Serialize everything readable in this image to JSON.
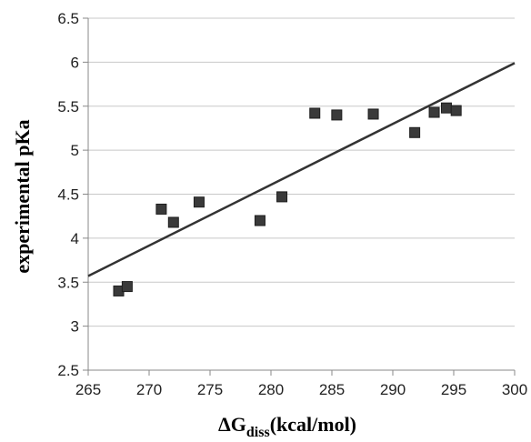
{
  "chart_data": {
    "type": "scatter",
    "xlabel_main": "ΔG",
    "xlabel_sub": "diss",
    "xlabel_unit": "(kcal/mol)",
    "ylabel": "experimental pKa",
    "xlim": [
      265,
      300
    ],
    "ylim": [
      2.5,
      6.5
    ],
    "x_ticks": [
      "265",
      "270",
      "275",
      "280",
      "285",
      "290",
      "295",
      "300"
    ],
    "y_ticks": [
      "2.5",
      "3",
      "3.5",
      "4",
      "4.5",
      "5",
      "5.5",
      "6",
      "6.5"
    ],
    "grid": "horizontal",
    "points": [
      {
        "x": 267.5,
        "y": 3.4
      },
      {
        "x": 268.2,
        "y": 3.45
      },
      {
        "x": 271.0,
        "y": 4.33
      },
      {
        "x": 272.0,
        "y": 4.18
      },
      {
        "x": 274.1,
        "y": 4.41
      },
      {
        "x": 279.1,
        "y": 4.2
      },
      {
        "x": 280.9,
        "y": 4.47
      },
      {
        "x": 283.6,
        "y": 5.42
      },
      {
        "x": 285.4,
        "y": 5.4
      },
      {
        "x": 288.4,
        "y": 5.41
      },
      {
        "x": 291.8,
        "y": 5.2
      },
      {
        "x": 293.4,
        "y": 5.43
      },
      {
        "x": 294.4,
        "y": 5.48
      },
      {
        "x": 295.2,
        "y": 5.45
      }
    ],
    "trendline": {
      "x": [
        265,
        300
      ],
      "y": [
        3.57,
        5.99
      ]
    },
    "colors": {
      "marker": "#3a3a3a",
      "line": "#333333",
      "grid": "#c8c8c8",
      "axis": "#888888"
    }
  }
}
